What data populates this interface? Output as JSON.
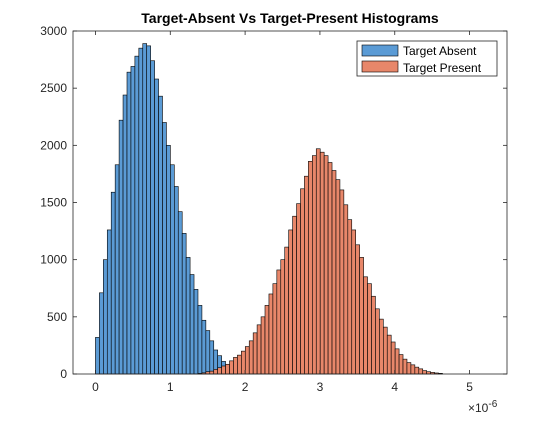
{
  "chart_data": {
    "type": "bar",
    "title": "Target-Absent Vs Target-Present Histograms",
    "xlabel": "",
    "ylabel": "",
    "x_exponent_label": "×10",
    "x_exponent_power": "-6",
    "xlim": [
      -3e-07,
      5.5e-06
    ],
    "ylim": [
      0,
      3000
    ],
    "x_ticks": [
      0,
      1e-06,
      2e-06,
      3e-06,
      4e-06,
      5e-06
    ],
    "x_tick_labels": [
      "0",
      "1",
      "2",
      "3",
      "4",
      "5"
    ],
    "y_ticks": [
      0,
      500,
      1000,
      1500,
      2000,
      2500,
      3000
    ],
    "y_tick_labels": [
      "0",
      "500",
      "1000",
      "1500",
      "2000",
      "2500",
      "3000"
    ],
    "grid": false,
    "legend_position": "top-right",
    "bin_width": 5.27e-08,
    "series": [
      {
        "name": "Target Absent",
        "color": "#5B9BD5",
        "bin_start": 0.0,
        "counts": [
          320,
          710,
          1000,
          1260,
          1590,
          1830,
          2220,
          2440,
          2640,
          2690,
          2780,
          2850,
          2890,
          2870,
          2740,
          2580,
          2430,
          2200,
          2000,
          1830,
          1640,
          1420,
          1230,
          1020,
          870,
          740,
          600,
          470,
          380,
          290,
          210,
          160,
          110,
          70,
          45,
          30
        ]
      },
      {
        "name": "Target Present",
        "color": "#E8876A",
        "bin_start": 1.37e-06,
        "counts": [
          5,
          10,
          20,
          25,
          40,
          55,
          70,
          85,
          115,
          145,
          165,
          200,
          240,
          290,
          360,
          430,
          500,
          600,
          700,
          790,
          910,
          1000,
          1110,
          1260,
          1380,
          1490,
          1620,
          1730,
          1860,
          1910,
          1970,
          1940,
          1910,
          1850,
          1780,
          1700,
          1610,
          1480,
          1350,
          1260,
          1130,
          1020,
          850,
          790,
          680,
          570,
          480,
          410,
          340,
          280,
          220,
          170,
          130,
          100,
          80,
          60,
          45,
          30,
          20,
          14,
          9,
          6
        ]
      }
    ]
  }
}
